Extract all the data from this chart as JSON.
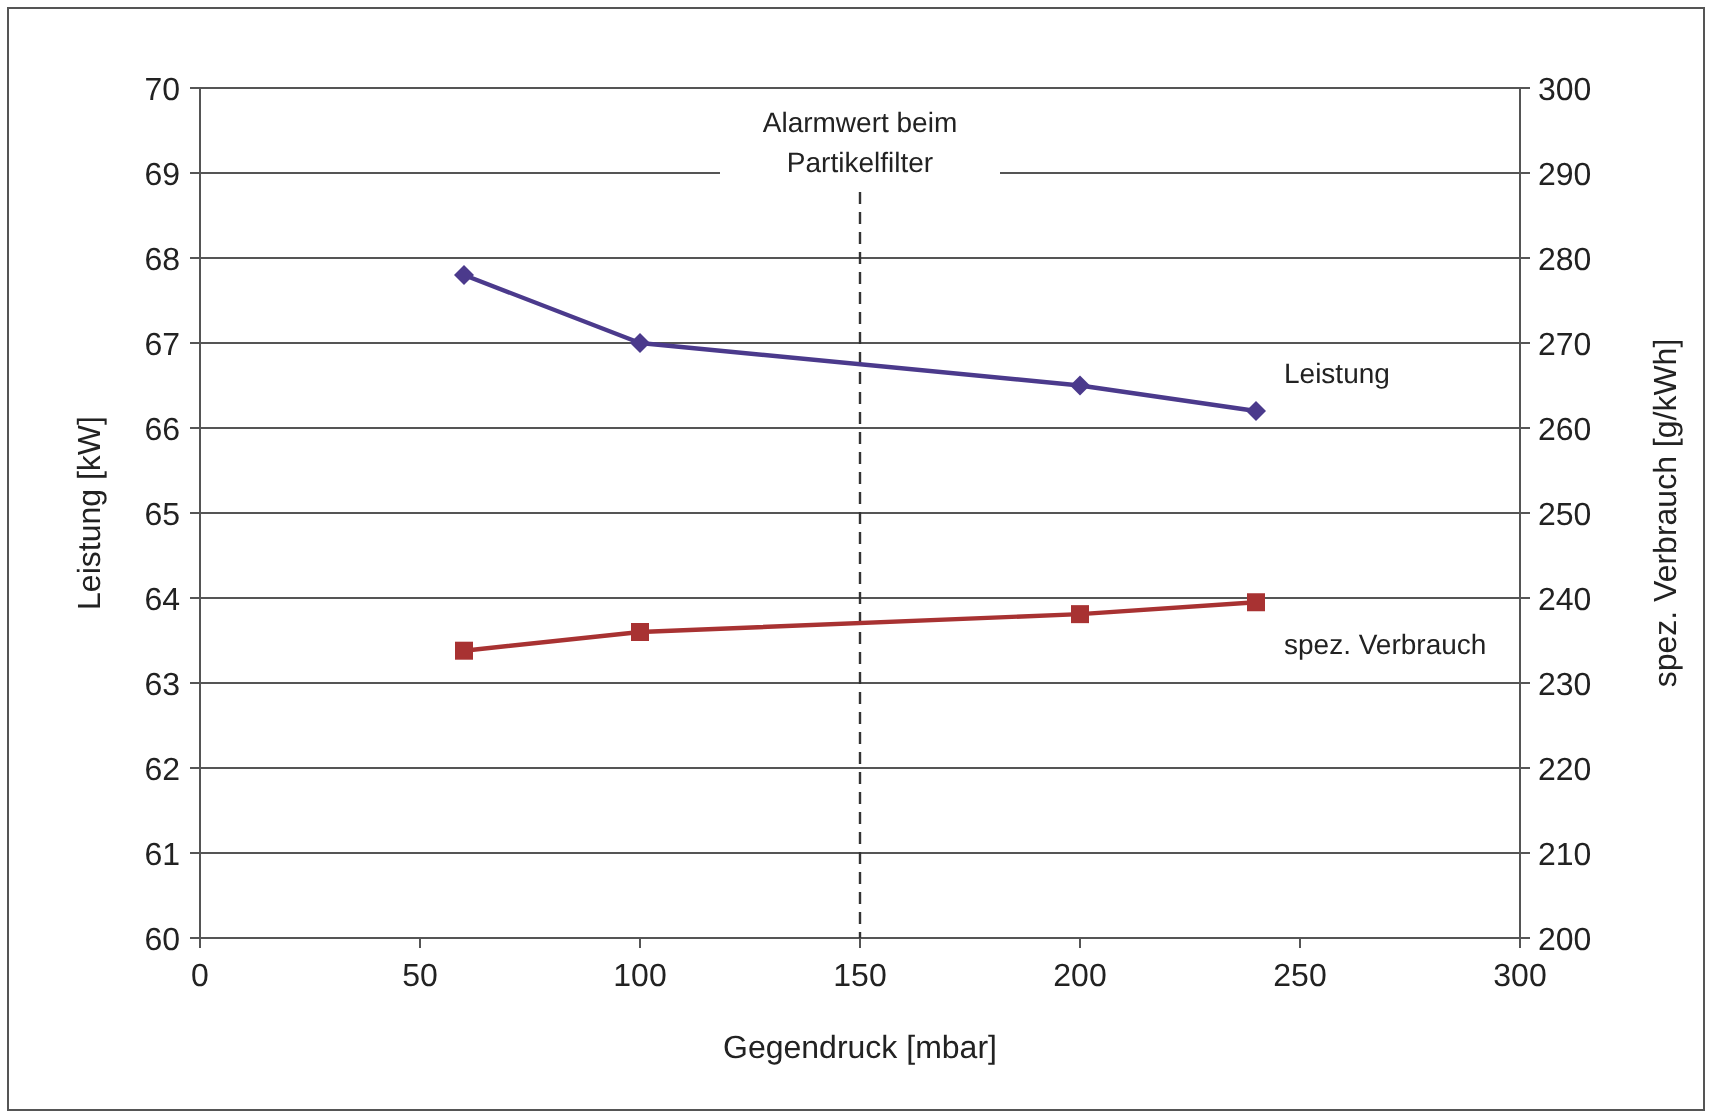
{
  "chart_data": {
    "type": "line",
    "xlabel": "Gegendruck [mbar]",
    "ylabel": "Leistung [kW]",
    "y2label": "spez. Verbrauch [g/kWh]",
    "x": [
      60,
      100,
      200,
      240
    ],
    "series": [
      {
        "name": "Leistung",
        "color": "#4b3a8c",
        "marker": "diamond",
        "values": [
          67.8,
          67.0,
          66.5,
          66.2
        ]
      },
      {
        "name": "spez. Verbrauch",
        "color": "#a83232",
        "marker": "square",
        "axis": "y2",
        "values": [
          233.8,
          236.0,
          238.1,
          239.5
        ]
      }
    ],
    "xlim": [
      0,
      300
    ],
    "xticks": [
      0,
      50,
      100,
      150,
      200,
      250,
      300
    ],
    "ylim": [
      60,
      70
    ],
    "yticks": [
      60,
      61,
      62,
      63,
      64,
      65,
      66,
      67,
      68,
      69,
      70
    ],
    "y2lim": [
      200,
      300
    ],
    "y2ticks": [
      200,
      210,
      220,
      230,
      240,
      250,
      260,
      270,
      280,
      290,
      300
    ],
    "ref_lines": [
      {
        "axis": "x",
        "value": 150,
        "label": "Alarmwert beim\nPartikelfilter",
        "color": "#333333",
        "line_style": "dashed"
      }
    ],
    "grid": "y",
    "line_style": "solid"
  }
}
